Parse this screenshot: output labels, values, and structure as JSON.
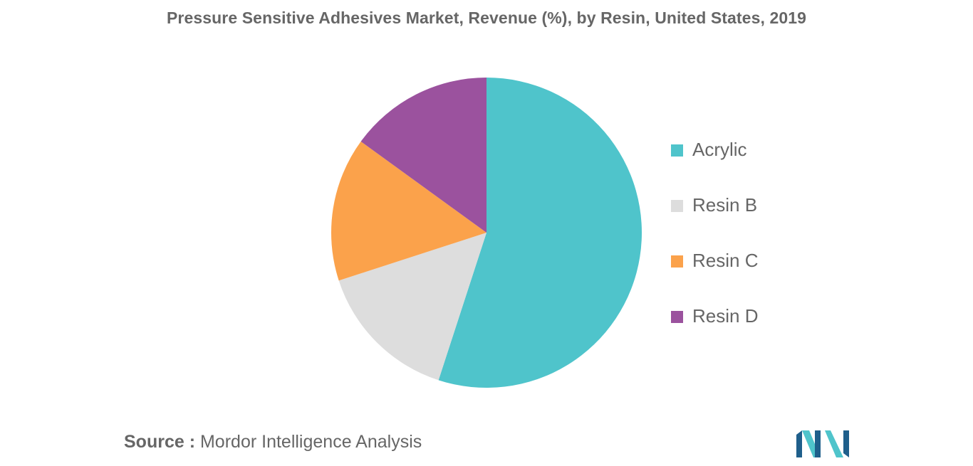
{
  "chart_data": {
    "type": "pie",
    "title": "Pressure Sensitive Adhesives Market, Revenue (%), by Resin, United States, 2019",
    "categories": [
      "Acrylic",
      "Resin B",
      "Resin C",
      "Resin D"
    ],
    "values": [
      55,
      15,
      15,
      15
    ],
    "colors": [
      "#4fc4cb",
      "#dddddd",
      "#fba24b",
      "#9b529e"
    ],
    "start_angle_deg": 0,
    "direction": "clockwise",
    "legend_position": "right"
  },
  "legend": {
    "items": [
      {
        "label": "Acrylic",
        "color": "#4fc4cb"
      },
      {
        "label": "Resin B",
        "color": "#dddddd"
      },
      {
        "label": "Resin C",
        "color": "#fba24b"
      },
      {
        "label": "Resin D",
        "color": "#9b529e"
      }
    ]
  },
  "footer": {
    "source_label": "Source :",
    "source_text": "Mordor Intelligence Analysis",
    "logo_icon": "mordor-intelligence-logo",
    "logo_colors": [
      "#1f5f8b",
      "#4fc4cb"
    ]
  }
}
